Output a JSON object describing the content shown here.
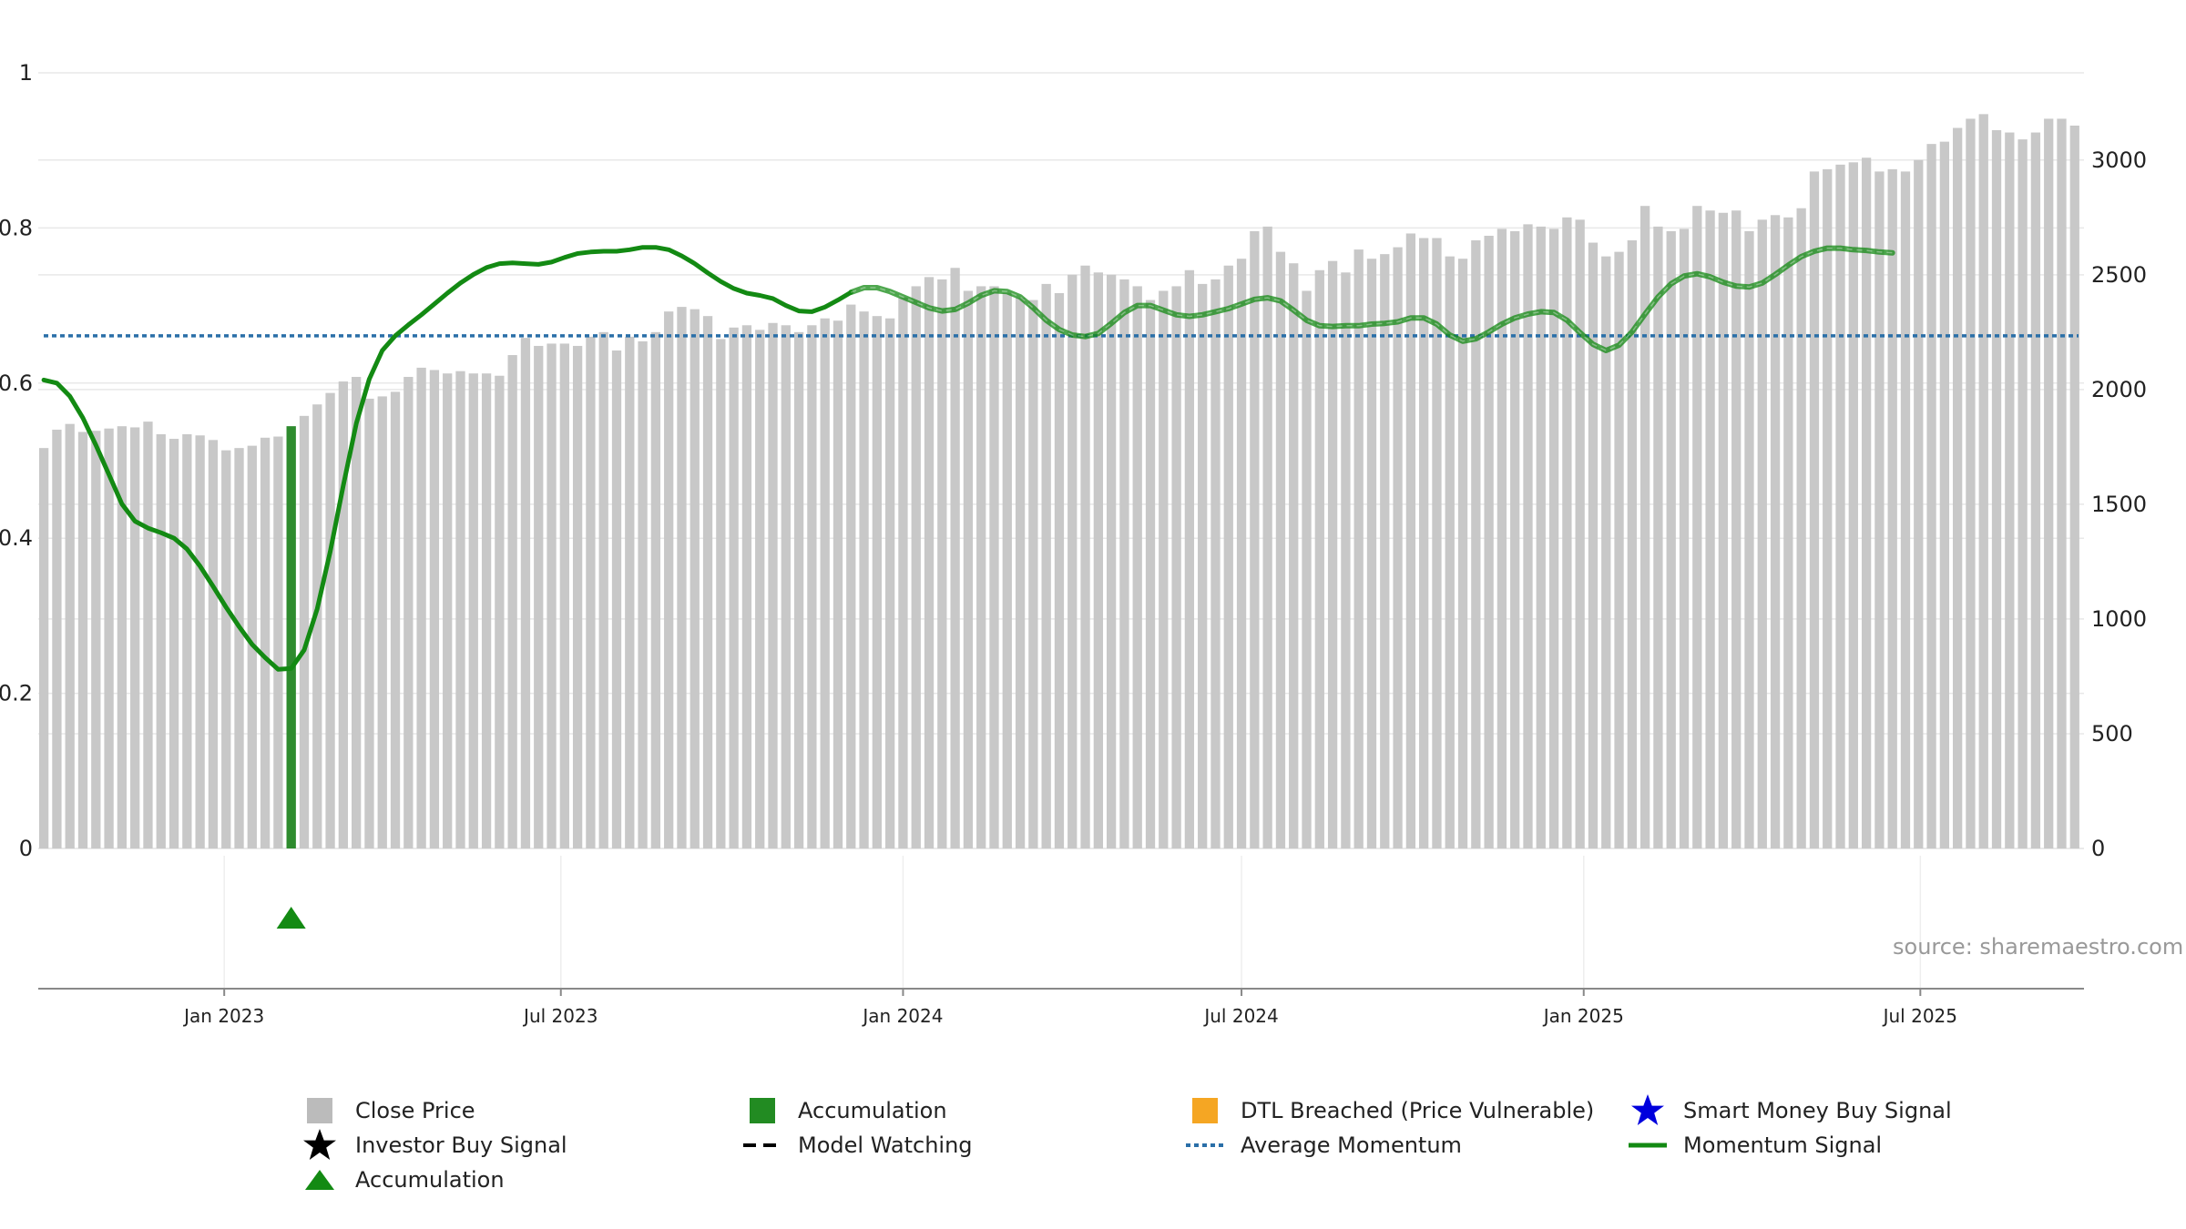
{
  "chart_data": {
    "type": "bar",
    "title": "",
    "xlabel": "",
    "ylabel": "",
    "left_axis": {
      "ylim": [
        0,
        1
      ],
      "ticks": [
        0,
        0.2,
        0.4,
        0.6,
        0.8,
        1
      ],
      "tick_labels": [
        "0",
        "0.2",
        "0.4",
        "0.6",
        "0.8",
        "1"
      ]
    },
    "right_axis": {
      "ylim": [
        0,
        3380
      ],
      "ticks": [
        0,
        500,
        1000,
        1500,
        2000,
        2500,
        3000
      ],
      "tick_labels": [
        "0",
        "500",
        "1000",
        "1500",
        "2000",
        "2500",
        "3000"
      ]
    },
    "x_axis": {
      "range": [
        "2022-09-23",
        "2025-09-27"
      ],
      "ticks": [
        "2023-01-01",
        "2023-07-01",
        "2024-01-01",
        "2024-07-01",
        "2025-01-01",
        "2025-07-01"
      ],
      "tick_labels": [
        "Jan 2023",
        "Jul 2023",
        "Jan 2024",
        "Jul 2024",
        "Jan 2025",
        "Jul 2025"
      ]
    },
    "grid": true,
    "legend_placement": "bottom",
    "bar_start_date": "2022-09-26",
    "bar_interval_days": 7,
    "close_price": [
      1745,
      1825,
      1850,
      1815,
      1820,
      1830,
      1840,
      1835,
      1860,
      1805,
      1785,
      1805,
      1800,
      1780,
      1735,
      1745,
      1755,
      1790,
      1795,
      1840,
      1885,
      1935,
      1985,
      2035,
      2055,
      1960,
      1970,
      1990,
      2055,
      2095,
      2085,
      2070,
      2080,
      2070,
      2070,
      2060,
      2150,
      2225,
      2190,
      2200,
      2200,
      2190,
      2230,
      2250,
      2170,
      2230,
      2210,
      2250,
      2340,
      2360,
      2350,
      2320,
      2220,
      2270,
      2280,
      2260,
      2290,
      2280,
      2250,
      2280,
      2310,
      2300,
      2370,
      2340,
      2320,
      2310,
      2400,
      2450,
      2490,
      2480,
      2530,
      2430,
      2450,
      2450,
      2420,
      2400,
      2390,
      2460,
      2420,
      2500,
      2540,
      2510,
      2500,
      2480,
      2450,
      2390,
      2430,
      2450,
      2520,
      2460,
      2480,
      2540,
      2570,
      2690,
      2710,
      2600,
      2550,
      2430,
      2520,
      2560,
      2510,
      2610,
      2570,
      2590,
      2620,
      2680,
      2660,
      2660,
      2580,
      2570,
      2650,
      2670,
      2700,
      2690,
      2720,
      2710,
      2700,
      2750,
      2740,
      2640,
      2580,
      2600,
      2650,
      2800,
      2710,
      2690,
      2700,
      2800,
      2780,
      2770,
      2780,
      2690,
      2740,
      2760,
      2750,
      2790,
      2950,
      2960,
      2980,
      2990,
      3010,
      2950,
      2960,
      2950,
      3000,
      3070,
      3080,
      3140,
      3180,
      3200,
      3130,
      3120,
      3090,
      3120,
      3180,
      3180,
      3150
    ],
    "highlight_bar_index": 19,
    "momentum_signal": [
      [
        0,
        0.604
      ],
      [
        1,
        0.6
      ],
      [
        2,
        0.583
      ],
      [
        3,
        0.555
      ],
      [
        4,
        0.52
      ],
      [
        5,
        0.482
      ],
      [
        6,
        0.444
      ],
      [
        7,
        0.422
      ],
      [
        8,
        0.413
      ],
      [
        9,
        0.407
      ],
      [
        10,
        0.4
      ],
      [
        11,
        0.386
      ],
      [
        12,
        0.364
      ],
      [
        13,
        0.338
      ],
      [
        14,
        0.311
      ],
      [
        15,
        0.286
      ],
      [
        16,
        0.263
      ],
      [
        17,
        0.246
      ],
      [
        18,
        0.231
      ],
      [
        19,
        0.232
      ],
      [
        20,
        0.256
      ],
      [
        21,
        0.309
      ],
      [
        22,
        0.383
      ],
      [
        23,
        0.468
      ],
      [
        24,
        0.548
      ],
      [
        25,
        0.605
      ],
      [
        26,
        0.642
      ],
      [
        27,
        0.661
      ],
      [
        28,
        0.675
      ],
      [
        29,
        0.688
      ],
      [
        30,
        0.702
      ],
      [
        31,
        0.716
      ],
      [
        32,
        0.729
      ],
      [
        33,
        0.74
      ],
      [
        34,
        0.749
      ],
      [
        35,
        0.754
      ],
      [
        36,
        0.755
      ],
      [
        37,
        0.754
      ],
      [
        38,
        0.753
      ],
      [
        39,
        0.756
      ],
      [
        40,
        0.762
      ],
      [
        41,
        0.767
      ],
      [
        42,
        0.769
      ],
      [
        43,
        0.77
      ],
      [
        44,
        0.77
      ],
      [
        45,
        0.772
      ],
      [
        46,
        0.775
      ],
      [
        47,
        0.775
      ],
      [
        48,
        0.772
      ],
      [
        49,
        0.764
      ],
      [
        50,
        0.754
      ],
      [
        51,
        0.742
      ],
      [
        52,
        0.731
      ],
      [
        53,
        0.722
      ],
      [
        54,
        0.716
      ],
      [
        55,
        0.713
      ],
      [
        56,
        0.709
      ],
      [
        57,
        0.7
      ],
      [
        58,
        0.693
      ],
      [
        59,
        0.692
      ],
      [
        60,
        0.698
      ],
      [
        61,
        0.707
      ],
      [
        62,
        0.717
      ],
      [
        63,
        0.723
      ],
      [
        64,
        0.723
      ],
      [
        65,
        0.718
      ],
      [
        66,
        0.711
      ],
      [
        67,
        0.704
      ],
      [
        68,
        0.697
      ],
      [
        69,
        0.693
      ],
      [
        70,
        0.695
      ],
      [
        71,
        0.703
      ],
      [
        72,
        0.713
      ],
      [
        73,
        0.719
      ],
      [
        74,
        0.718
      ],
      [
        75,
        0.711
      ],
      [
        76,
        0.697
      ],
      [
        77,
        0.681
      ],
      [
        78,
        0.669
      ],
      [
        79,
        0.662
      ],
      [
        80,
        0.66
      ],
      [
        81,
        0.664
      ],
      [
        82,
        0.677
      ],
      [
        83,
        0.691
      ],
      [
        84,
        0.7
      ],
      [
        85,
        0.7
      ],
      [
        86,
        0.694
      ],
      [
        87,
        0.688
      ],
      [
        88,
        0.686
      ],
      [
        89,
        0.688
      ],
      [
        90,
        0.692
      ],
      [
        91,
        0.696
      ],
      [
        92,
        0.702
      ],
      [
        93,
        0.708
      ],
      [
        94,
        0.71
      ],
      [
        95,
        0.706
      ],
      [
        96,
        0.694
      ],
      [
        97,
        0.681
      ],
      [
        98,
        0.674
      ],
      [
        99,
        0.673
      ],
      [
        100,
        0.674
      ],
      [
        101,
        0.674
      ],
      [
        102,
        0.676
      ],
      [
        103,
        0.677
      ],
      [
        104,
        0.679
      ],
      [
        105,
        0.684
      ],
      [
        106,
        0.684
      ],
      [
        107,
        0.676
      ],
      [
        108,
        0.662
      ],
      [
        109,
        0.654
      ],
      [
        110,
        0.657
      ],
      [
        111,
        0.666
      ],
      [
        112,
        0.676
      ],
      [
        113,
        0.684
      ],
      [
        114,
        0.689
      ],
      [
        115,
        0.692
      ],
      [
        116,
        0.691
      ],
      [
        117,
        0.681
      ],
      [
        118,
        0.665
      ],
      [
        119,
        0.65
      ],
      [
        120,
        0.642
      ],
      [
        121,
        0.649
      ],
      [
        122,
        0.666
      ],
      [
        123,
        0.689
      ],
      [
        124,
        0.711
      ],
      [
        125,
        0.728
      ],
      [
        126,
        0.738
      ],
      [
        127,
        0.741
      ],
      [
        128,
        0.737
      ],
      [
        129,
        0.73
      ],
      [
        130,
        0.725
      ],
      [
        131,
        0.724
      ],
      [
        132,
        0.729
      ],
      [
        133,
        0.74
      ],
      [
        134,
        0.752
      ],
      [
        135,
        0.763
      ],
      [
        136,
        0.77
      ],
      [
        137,
        0.774
      ],
      [
        138,
        0.774
      ],
      [
        139,
        0.772
      ],
      [
        140,
        0.771
      ],
      [
        141,
        0.769
      ],
      [
        142,
        0.768
      ]
    ],
    "momentum_faded_from_index": 62,
    "average_momentum": 0.661,
    "accumulation_marker_index": 19,
    "source": "source: sharemaestro.com",
    "legend": [
      {
        "label": "Close Price",
        "symbol": "square",
        "color": "#bbbbbb"
      },
      {
        "label": "Accumulation",
        "symbol": "square",
        "color": "#228b22"
      },
      {
        "label": "DTL Breached (Price Vulnerable)",
        "symbol": "square",
        "color": "#f5a623"
      },
      {
        "label": "Smart Money Buy Signal",
        "symbol": "star",
        "color": "#0000dd"
      },
      {
        "label": "Investor Buy Signal",
        "symbol": "star",
        "color": "#000000"
      },
      {
        "label": "Model Watching",
        "symbol": "dash",
        "color": "#000000"
      },
      {
        "label": "Average Momentum",
        "symbol": "dot",
        "color": "#2a6fa8"
      },
      {
        "label": "Momentum Signal",
        "symbol": "line",
        "color": "#138a13"
      },
      {
        "label": "Accumulation",
        "symbol": "triangle",
        "color": "#138a13"
      }
    ],
    "colors": {
      "bar": "#c8c8c8",
      "accent_bar": "#2e8b2e",
      "momentum": "#138a13",
      "average": "#2a6fa8",
      "grid": "#e8e8e8"
    }
  }
}
